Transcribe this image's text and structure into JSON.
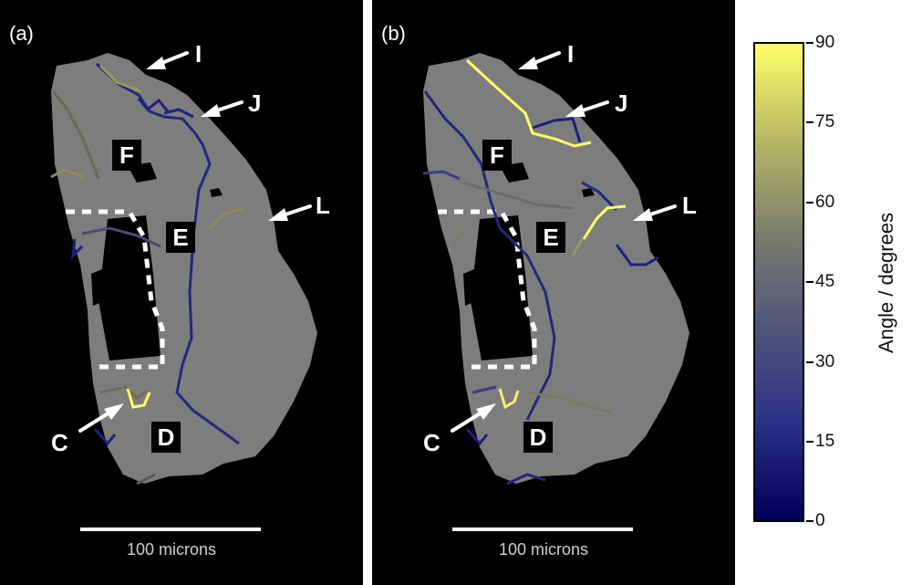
{
  "panels": [
    {
      "label": "(a)",
      "regions": [
        "F",
        "E",
        "C",
        "D"
      ],
      "arrows": [
        "I",
        "J",
        "L",
        "C"
      ],
      "scale_label": "100 microns"
    },
    {
      "label": "(b)",
      "regions": [
        "F",
        "E",
        "D"
      ],
      "arrows": [
        "I",
        "J",
        "L",
        "C"
      ],
      "scale_label": "100 microns"
    }
  ],
  "colorbar": {
    "title": "Angle / degrees",
    "ticks": [
      "90",
      "75",
      "60",
      "45",
      "30",
      "15",
      "0"
    ],
    "colors": {
      "low": "#00005a",
      "mid": "#6a6a6a",
      "high": "#ffff6a"
    }
  }
}
